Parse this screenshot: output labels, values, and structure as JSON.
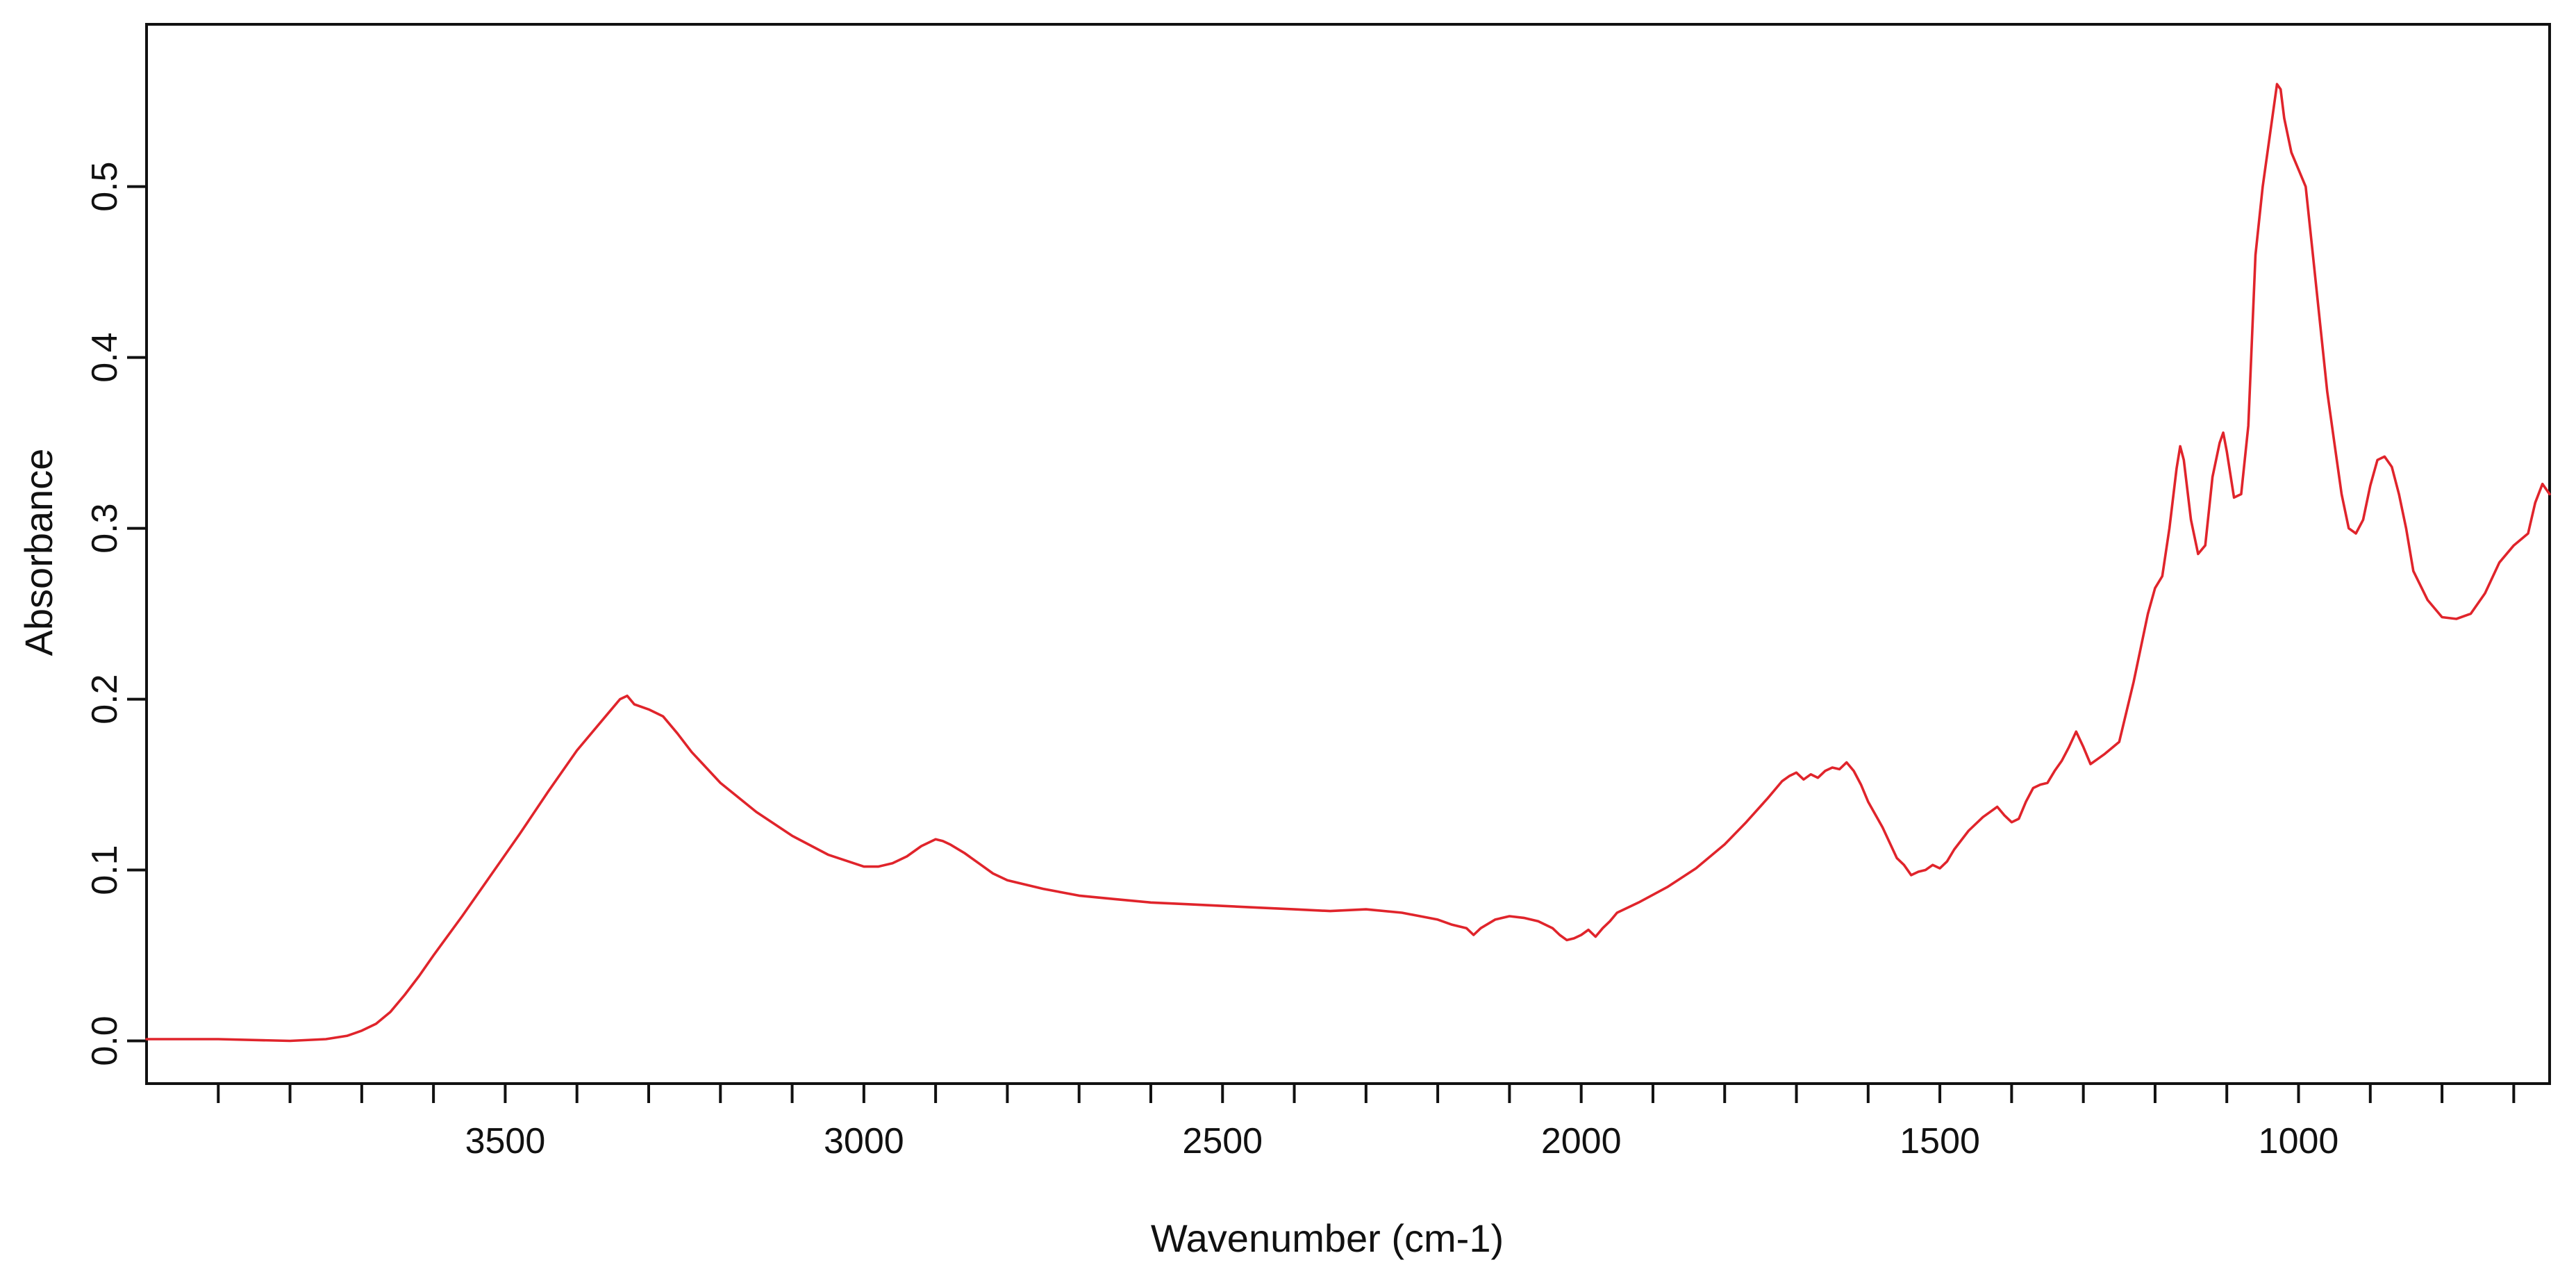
{
  "chart_data": {
    "type": "line",
    "title": "",
    "xlabel": "Wavenumber (cm-1)",
    "ylabel": "Absorbance",
    "x_reversed": true,
    "xlim": [
      4000,
      650
    ],
    "ylim": [
      -0.025,
      0.595
    ],
    "x_major_ticks": [
      3500,
      3000,
      2500,
      2000,
      1500,
      1000
    ],
    "x_minor_ticks": [
      3900,
      3800,
      3700,
      3600,
      3400,
      3300,
      3200,
      3100,
      2900,
      2800,
      2700,
      2600,
      2400,
      2300,
      2200,
      2100,
      1900,
      1800,
      1700,
      1600,
      1400,
      1300,
      1200,
      1100,
      900,
      800,
      700
    ],
    "y_ticks": [
      0.0,
      0.1,
      0.2,
      0.3,
      0.4,
      0.5
    ],
    "x_tick_labels": [
      "3500",
      "3000",
      "2500",
      "2000",
      "1500",
      "1000"
    ],
    "y_tick_labels": [
      "0.0",
      "0.1",
      "0.2",
      "0.3",
      "0.4",
      "0.5"
    ],
    "grid": false,
    "legend": "none",
    "line_color": "#e0242b",
    "series": [
      {
        "x": [
          4000,
          3900,
          3800,
          3750,
          3720,
          3700,
          3680,
          3660,
          3640,
          3620,
          3600,
          3560,
          3520,
          3480,
          3440,
          3400,
          3360,
          3340,
          3330,
          3320,
          3300,
          3280,
          3260,
          3240,
          3200,
          3150,
          3100,
          3050,
          3000,
          2980,
          2960,
          2940,
          2920,
          2900,
          2890,
          2880,
          2860,
          2840,
          2820,
          2800,
          2750,
          2700,
          2650,
          2600,
          2550,
          2500,
          2450,
          2400,
          2350,
          2300,
          2250,
          2200,
          2180,
          2160,
          2150,
          2140,
          2120,
          2100,
          2080,
          2060,
          2040,
          2030,
          2020,
          2010,
          2000,
          1990,
          1980,
          1970,
          1960,
          1950,
          1920,
          1880,
          1840,
          1800,
          1770,
          1740,
          1720,
          1710,
          1700,
          1690,
          1680,
          1670,
          1660,
          1650,
          1640,
          1630,
          1620,
          1610,
          1600,
          1580,
          1560,
          1550,
          1540,
          1530,
          1520,
          1510,
          1500,
          1490,
          1480,
          1460,
          1440,
          1430,
          1420,
          1410,
          1400,
          1390,
          1380,
          1370,
          1360,
          1350,
          1340,
          1330,
          1320,
          1310,
          1300,
          1290,
          1280,
          1270,
          1250,
          1230,
          1210,
          1200,
          1190,
          1180,
          1170,
          1165,
          1160,
          1150,
          1140,
          1130,
          1120,
          1110,
          1105,
          1100,
          1090,
          1080,
          1070,
          1060,
          1050,
          1040,
          1030,
          1025,
          1020,
          1010,
          1000,
          990,
          980,
          970,
          960,
          950,
          940,
          930,
          920,
          910,
          900,
          890,
          880,
          870,
          860,
          850,
          840,
          820,
          800,
          780,
          760,
          740,
          720,
          700,
          680,
          670,
          660,
          650
        ],
        "y": [
          0.001,
          0.001,
          0.0,
          0.001,
          0.003,
          0.006,
          0.01,
          0.017,
          0.027,
          0.038,
          0.05,
          0.073,
          0.097,
          0.121,
          0.146,
          0.17,
          0.19,
          0.2,
          0.202,
          0.197,
          0.194,
          0.19,
          0.18,
          0.169,
          0.151,
          0.134,
          0.12,
          0.109,
          0.102,
          0.102,
          0.104,
          0.108,
          0.114,
          0.118,
          0.117,
          0.115,
          0.11,
          0.104,
          0.098,
          0.094,
          0.089,
          0.085,
          0.083,
          0.081,
          0.08,
          0.079,
          0.078,
          0.077,
          0.076,
          0.077,
          0.075,
          0.071,
          0.068,
          0.066,
          0.062,
          0.066,
          0.071,
          0.073,
          0.072,
          0.07,
          0.066,
          0.062,
          0.059,
          0.06,
          0.062,
          0.065,
          0.061,
          0.066,
          0.07,
          0.075,
          0.081,
          0.09,
          0.101,
          0.115,
          0.128,
          0.142,
          0.152,
          0.155,
          0.157,
          0.153,
          0.156,
          0.154,
          0.158,
          0.16,
          0.159,
          0.163,
          0.158,
          0.15,
          0.14,
          0.125,
          0.107,
          0.103,
          0.097,
          0.099,
          0.1,
          0.103,
          0.101,
          0.105,
          0.112,
          0.123,
          0.131,
          0.134,
          0.137,
          0.132,
          0.128,
          0.13,
          0.14,
          0.148,
          0.15,
          0.151,
          0.158,
          0.164,
          0.172,
          0.181,
          0.172,
          0.162,
          0.165,
          0.168,
          0.175,
          0.21,
          0.25,
          0.265,
          0.272,
          0.3,
          0.335,
          0.348,
          0.34,
          0.305,
          0.285,
          0.29,
          0.33,
          0.35,
          0.356,
          0.345,
          0.318,
          0.32,
          0.36,
          0.46,
          0.5,
          0.53,
          0.56,
          0.557,
          0.54,
          0.52,
          0.51,
          0.5,
          0.46,
          0.42,
          0.38,
          0.35,
          0.32,
          0.3,
          0.297,
          0.305,
          0.325,
          0.34,
          0.342,
          0.336,
          0.32,
          0.3,
          0.275,
          0.258,
          0.248,
          0.247,
          0.25,
          0.262,
          0.28,
          0.29,
          0.297,
          0.315,
          0.326,
          0.32
        ]
      }
    ]
  }
}
